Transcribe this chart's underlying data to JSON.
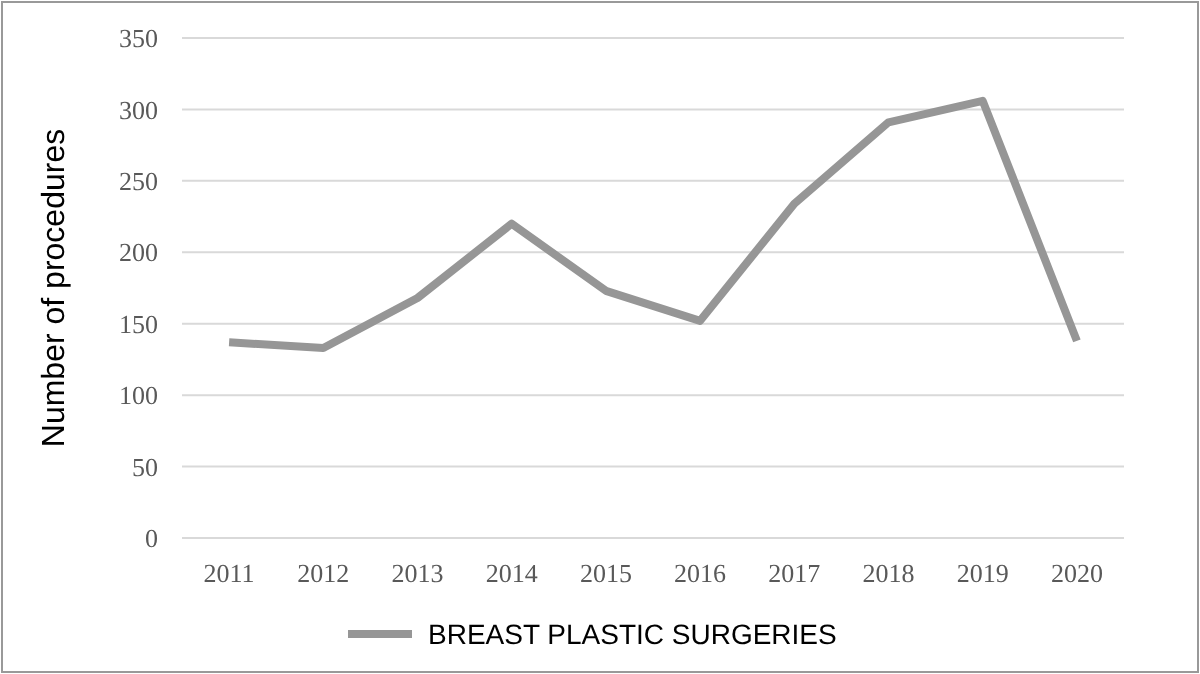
{
  "chart_data": {
    "type": "line",
    "ylabel": "Number of procedures",
    "categories": [
      "2011",
      "2012",
      "2013",
      "2014",
      "2015",
      "2016",
      "2017",
      "2018",
      "2019",
      "2020"
    ],
    "series": [
      {
        "name": "BREAST PLASTIC SURGERIES",
        "color": "#969696",
        "values": [
          137,
          133,
          168,
          220,
          173,
          152,
          234,
          291,
          306,
          138
        ]
      }
    ],
    "ylim": [
      0,
      350
    ],
    "yticks": [
      0,
      50,
      100,
      150,
      200,
      250,
      300,
      350
    ],
    "grid": "y",
    "legend": "bottom",
    "marker": "none"
  }
}
